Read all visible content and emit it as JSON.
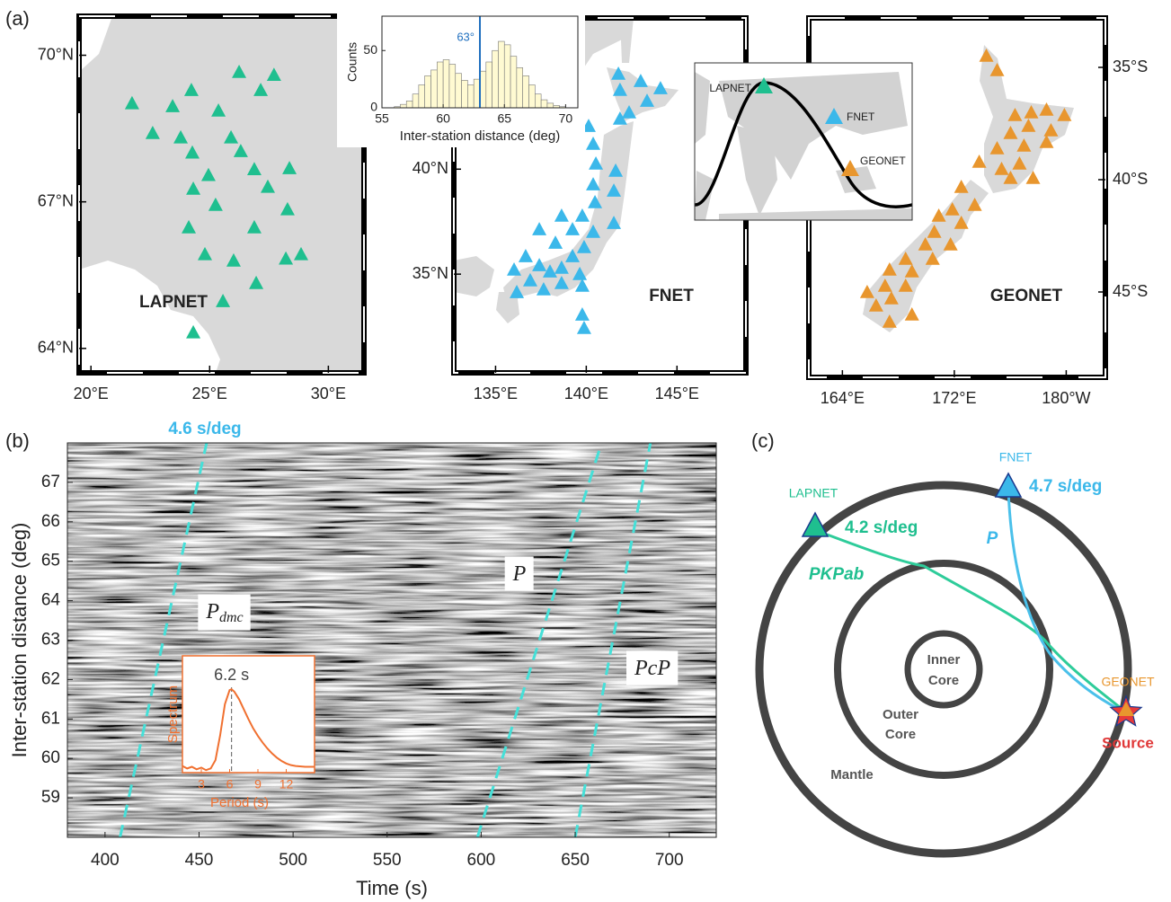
{
  "panel_labels": [
    "(a)",
    "(b)",
    "(c)"
  ],
  "maps": [
    {
      "name": "LAPNET",
      "color": "#1fbf8f",
      "xlim": [
        19.5,
        31.5
      ],
      "ylim": [
        63.5,
        70.8
      ],
      "xticks": [
        {
          "value": 20,
          "label": "20°E"
        },
        {
          "value": 25,
          "label": "25°E"
        },
        {
          "value": 30,
          "label": "30°E"
        }
      ],
      "yticks": [
        {
          "value": 64,
          "label": "64°N"
        },
        {
          "value": 67,
          "label": "67°N"
        },
        {
          "value": 70,
          "label": "70°N"
        }
      ],
      "stations": {
        "lon": [
          21.73,
          24.23,
          26.24,
          27.71,
          27.15,
          23.44,
          25.37,
          22.6,
          23.78,
          25.9,
          24.27,
          26.31,
          26.88,
          28.36,
          24.95,
          27.45,
          24.31,
          25.25,
          28.28,
          24.12,
          26.88,
          24.8,
          26.01,
          28.21,
          26.96,
          25.56,
          24.31,
          28.85
        ],
        "lat": [
          69.02,
          69.29,
          69.66,
          69.6,
          69.29,
          68.96,
          68.87,
          68.41,
          68.32,
          68.32,
          68.01,
          68.04,
          67.67,
          67.69,
          67.55,
          67.31,
          67.27,
          66.94,
          66.85,
          66.48,
          66.48,
          65.93,
          65.8,
          65.84,
          65.34,
          64.97,
          64.33,
          65.93
        ]
      }
    },
    {
      "name": "FNET",
      "color": "#3bb8ea",
      "xlim": [
        132.7,
        148.8
      ],
      "ylim": [
        30.3,
        47.2
      ],
      "xticks": [
        {
          "value": 135,
          "label": "135°E"
        },
        {
          "value": 140,
          "label": "140°E"
        },
        {
          "value": 145,
          "label": "145°E"
        }
      ],
      "yticks": [
        {
          "value": 35,
          "label": "35°N"
        },
        {
          "value": 40,
          "label": "40°N"
        }
      ],
      "stations": {
        "lon": [
          141.77,
          143.0,
          144.09,
          141.86,
          143.35,
          142.36,
          140.13,
          141.86,
          140.38,
          140.53,
          141.62,
          140.38,
          141.52,
          140.48,
          141.52,
          138.64,
          139.78,
          137.41,
          139.24,
          140.38,
          138.3,
          139.88,
          136.66,
          139.24,
          137.41,
          138.64,
          136.02,
          138.0,
          139.64,
          136.91,
          138.64,
          137.65,
          136.17,
          139.78,
          139.78,
          139.88
        ],
        "lat": [
          44.55,
          44.2,
          43.86,
          43.78,
          43.26,
          42.71,
          42.06,
          42.41,
          41.21,
          40.27,
          39.93,
          39.28,
          38.98,
          38.43,
          37.44,
          37.79,
          37.79,
          37.14,
          37.14,
          37.02,
          36.5,
          36.29,
          35.86,
          35.86,
          35.43,
          35.31,
          35.22,
          35.13,
          35.01,
          34.71,
          34.58,
          34.28,
          34.15,
          34.45,
          33.08,
          32.44
        ]
      }
    },
    {
      "name": "GEONET",
      "color": "#e8962e",
      "xlim": [
        161.6,
        182.8
      ],
      "ylim": [
        -48.8,
        -32.8
      ],
      "xticks": [
        {
          "value": 164,
          "label": "164°E"
        },
        {
          "value": 172,
          "label": "172°E"
        },
        {
          "value": 180,
          "label": "180°W"
        }
      ],
      "yticks": [
        {
          "value": -35,
          "label": "35°S"
        },
        {
          "value": -40,
          "label": "40°S"
        },
        {
          "value": -45,
          "label": "45°S"
        }
      ],
      "stations": {
        "lon": [
          174.29,
          175.06,
          176.34,
          177.5,
          178.59,
          179.87,
          176.02,
          177.3,
          178.91,
          175.06,
          176.98,
          178.59,
          173.78,
          175.38,
          176.66,
          176.02,
          177.63,
          172.5,
          173.46,
          171.86,
          170.89,
          172.5,
          170.57,
          169.93,
          171.73,
          168.52,
          170.45,
          168.97,
          167.37,
          167.05,
          168.52,
          165.77,
          167.5,
          166.41,
          168.97,
          167.37
        ],
        "lat": [
          -34.48,
          -35.12,
          -37.12,
          -37.0,
          -36.88,
          -37.12,
          -37.92,
          -37.6,
          -37.8,
          -38.6,
          -38.48,
          -38.32,
          -39.2,
          -39.52,
          -39.28,
          -39.92,
          -39.92,
          -40.32,
          -41.12,
          -41.32,
          -41.6,
          -41.92,
          -42.32,
          -42.88,
          -42.88,
          -43.52,
          -43.52,
          -44.08,
          -44.0,
          -44.72,
          -44.72,
          -45.0,
          -45.28,
          -45.6,
          -46.0,
          -46.32
        ]
      }
    }
  ],
  "globe_inset": {
    "labels": [
      "LAPNET",
      "FNET",
      "GEONET"
    ]
  },
  "chart_data": [
    {
      "type": "histogram",
      "xlabel": "Inter-station distance (deg)",
      "ylabel": "Counts",
      "bins": [
        56,
        56.5,
        57,
        57.5,
        58,
        58.5,
        59,
        59.5,
        60,
        60.5,
        61,
        61.5,
        62,
        62.5,
        63,
        63.5,
        64,
        64.5,
        65,
        65.5,
        66,
        66.5,
        67,
        67.5,
        68,
        68.5,
        69,
        69.5,
        70
      ],
      "values": [
        1,
        3,
        6,
        12,
        20,
        28,
        33,
        40,
        42,
        38,
        30,
        24,
        20,
        25,
        32,
        40,
        50,
        58,
        55,
        45,
        35,
        28,
        20,
        12,
        7,
        4,
        2,
        1
      ],
      "color": "#fffad2",
      "edge_color": "#777777",
      "xlim": [
        55,
        71
      ],
      "ylim": [
        0,
        80
      ],
      "xticks": [
        55,
        60,
        65,
        70
      ],
      "yticks": [
        0,
        50
      ],
      "vline": {
        "value": 63,
        "label": "63°",
        "color": "#1f6fbf"
      }
    },
    {
      "type": "image",
      "xlabel": "Time (s)",
      "ylabel": "Inter-station distance (deg)",
      "xlim": [
        380,
        725
      ],
      "ylim": [
        58,
        68
      ],
      "xticks": [
        400,
        450,
        500,
        550,
        600,
        650,
        700
      ],
      "yticks": [
        59,
        60,
        61,
        62,
        63,
        64,
        65,
        66,
        67
      ],
      "guide_lines": [
        {
          "x": [
            408,
            454
          ],
          "y": [
            58,
            68
          ],
          "color": "#45e0d8"
        },
        {
          "x": [
            598,
            664
          ],
          "y": [
            58,
            68
          ],
          "color": "#45e0d8"
        },
        {
          "x": [
            650,
            690
          ],
          "y": [
            58,
            68
          ],
          "color": "#45e0d8"
        }
      ],
      "annotations": [
        {
          "text": "4.6 s/deg"
        },
        {
          "text": "P",
          "sub": "dmc"
        },
        {
          "text": "P"
        },
        {
          "text": "PcP"
        }
      ]
    },
    {
      "type": "line",
      "xlabel": "Period (s)",
      "ylabel": "Spectrum",
      "color": "#f07030",
      "x": [
        1,
        1.5,
        2,
        2.5,
        3,
        3.5,
        4,
        4.5,
        5,
        5.5,
        6,
        6.2,
        6.5,
        7,
        7.5,
        8,
        8.5,
        9,
        9.5,
        10,
        10.5,
        11,
        11.5,
        12,
        12.5,
        13,
        14,
        15
      ],
      "values": [
        0.08,
        0.05,
        0.07,
        0.04,
        0.06,
        0.03,
        0.05,
        0.15,
        0.45,
        0.82,
        0.99,
        1.0,
        0.97,
        0.88,
        0.76,
        0.64,
        0.53,
        0.44,
        0.36,
        0.29,
        0.23,
        0.18,
        0.14,
        0.11,
        0.09,
        0.08,
        0.07,
        0.07
      ],
      "xlim": [
        1,
        15
      ],
      "ylim": [
        0,
        1.4
      ],
      "xticks": [
        3,
        6,
        9,
        12
      ],
      "vline": {
        "value": 6.2,
        "label": "6.2 s"
      }
    }
  ],
  "diagram": {
    "stations": [
      {
        "name": "LAPNET",
        "slowness": "4.2 s/deg"
      },
      {
        "name": "FNET",
        "slowness": "4.7 s/deg"
      },
      {
        "name": "GEONET"
      }
    ],
    "phases": [
      "P",
      "PKPab"
    ],
    "inner_core": [
      "Inner",
      "Core"
    ],
    "outer_core": [
      "Outer",
      "Core"
    ],
    "mantle": "Mantle",
    "source": "Source"
  }
}
